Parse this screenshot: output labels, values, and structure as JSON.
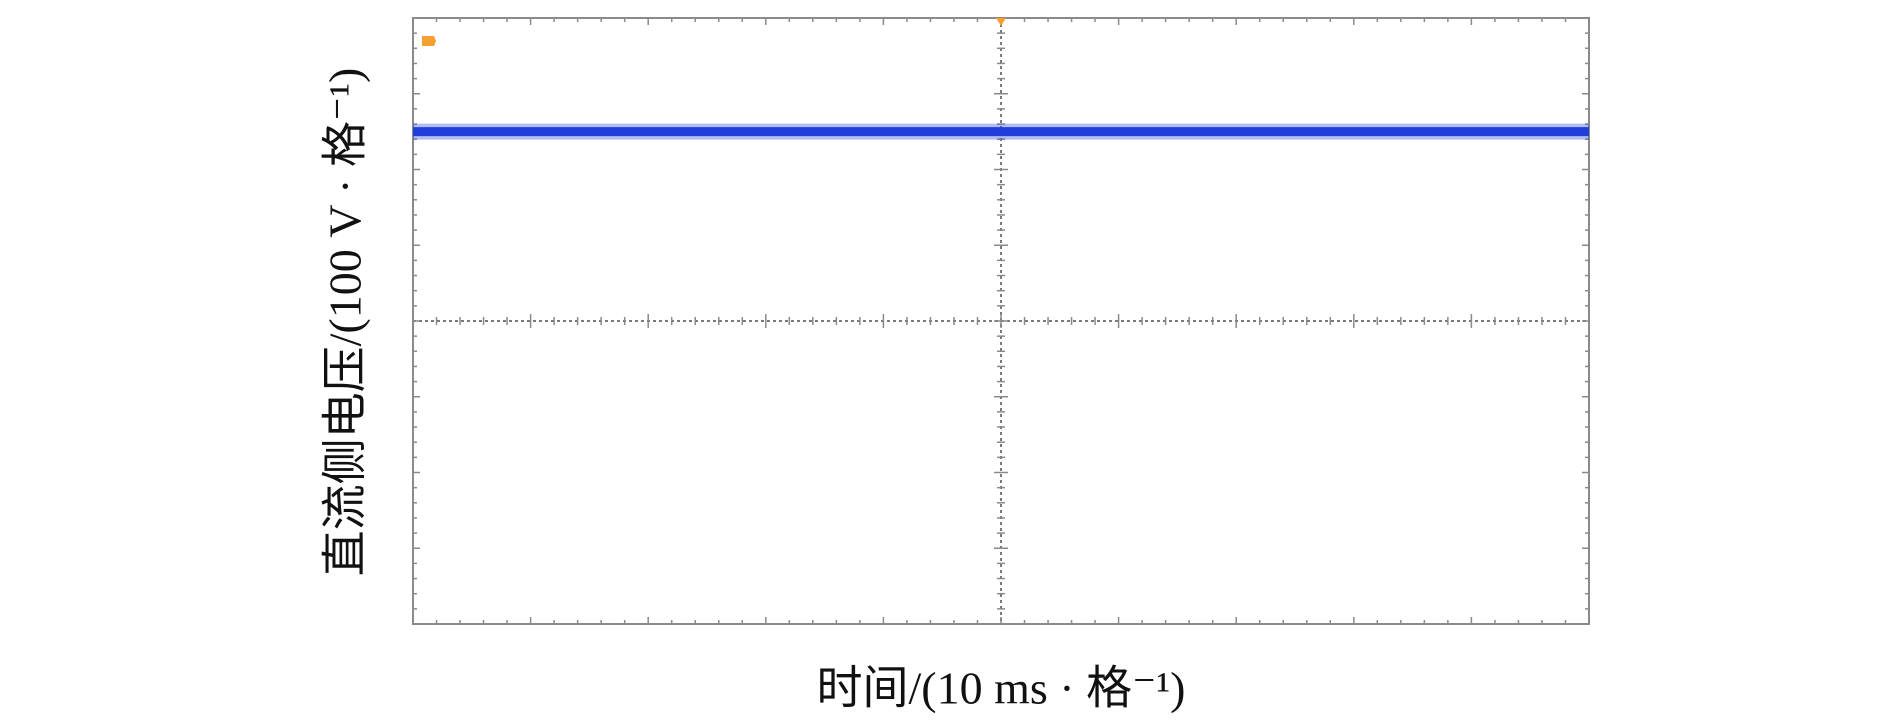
{
  "chart_data": {
    "type": "line",
    "x_label": "时间/(10 ms · 格⁻¹)",
    "y_label": "直流侧电压/(100 V · 格⁻¹)",
    "x": [
      0,
      100
    ],
    "series": [
      {
        "name": "直流侧电压",
        "color": "#1f3fd8",
        "values": [
          650,
          650
        ]
      }
    ],
    "xlim": [
      0,
      100
    ],
    "ylim": [
      0,
      800
    ]
  }
}
